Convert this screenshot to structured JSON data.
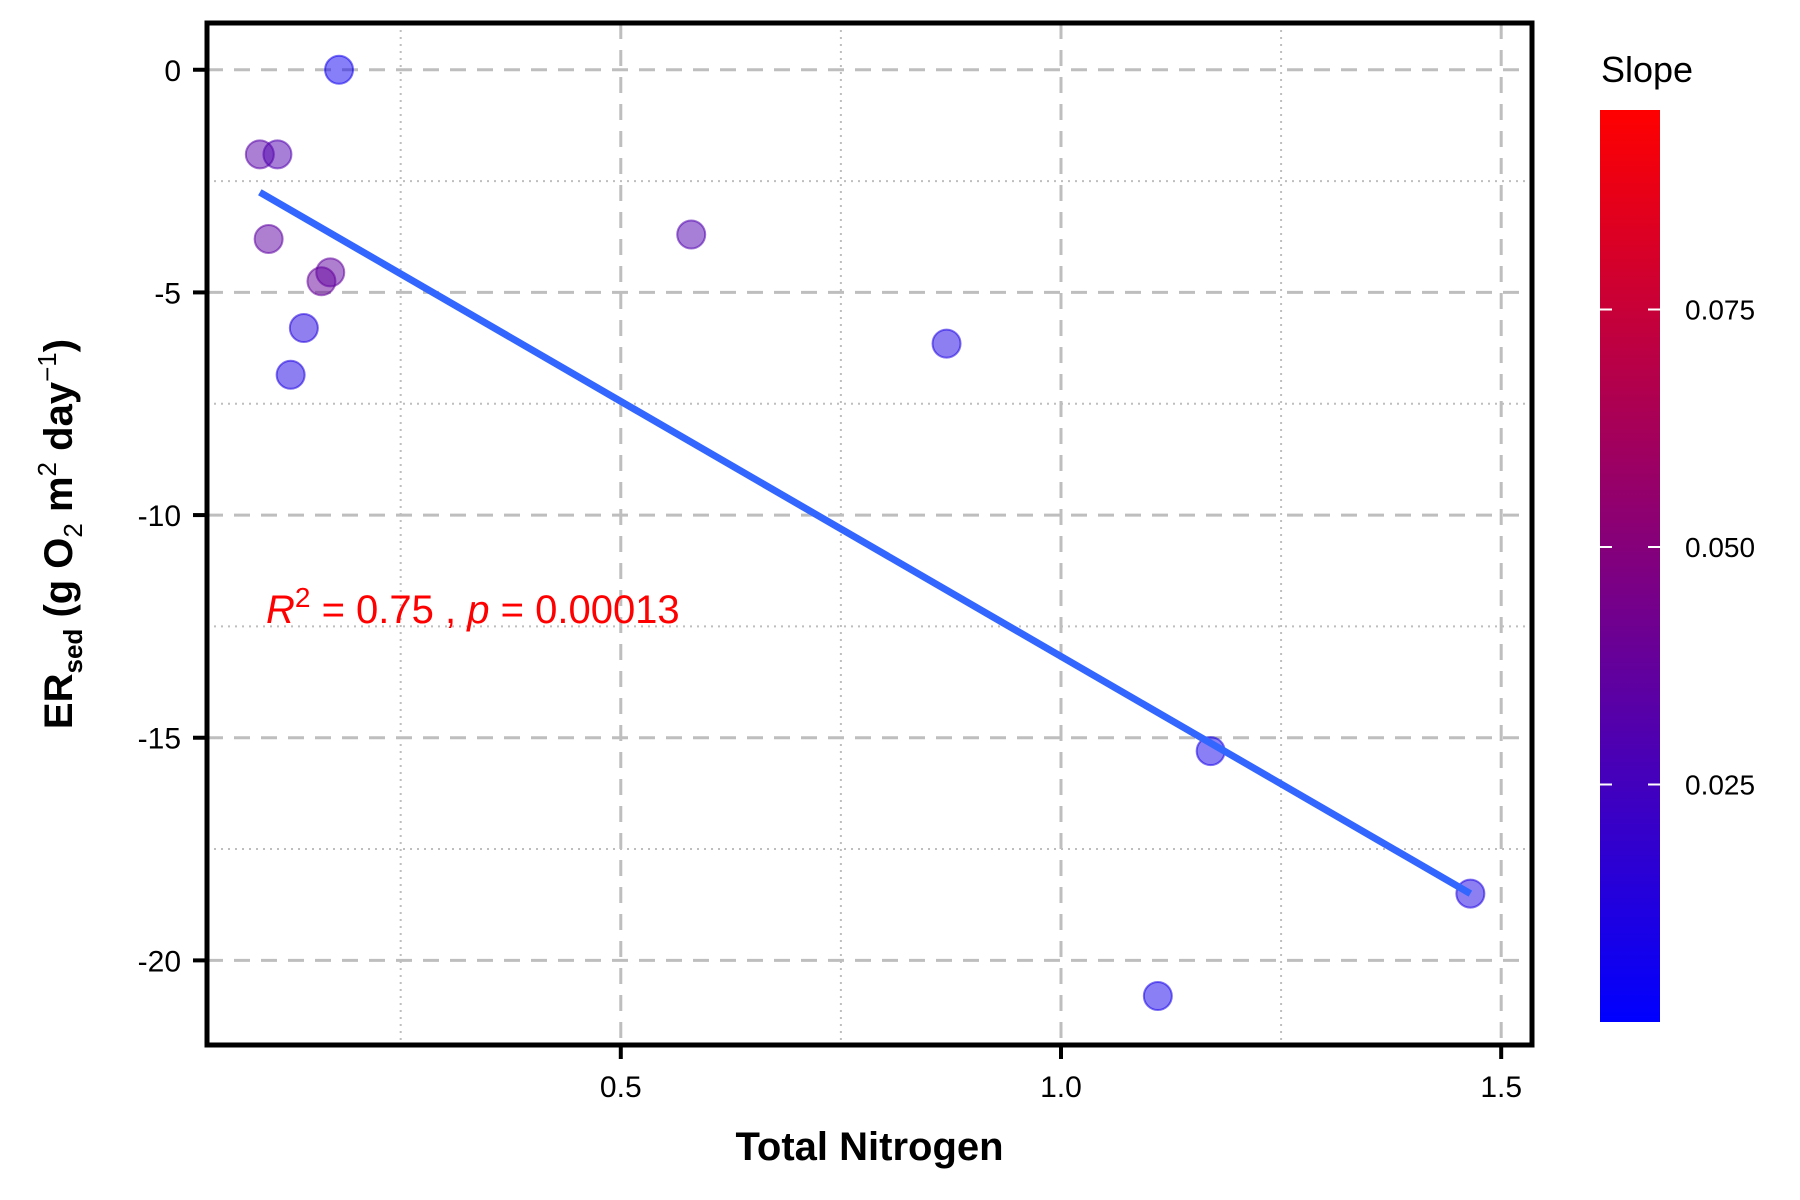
{
  "chart_data": {
    "type": "scatter",
    "xlabel": "Total Nitrogen",
    "ylabel": {
      "main": "ER",
      "sub": "sed",
      "unit_open": " (g O",
      "o2_sub": "2",
      "unit_mid": " m",
      "m_sup": "2",
      "unit_day": " day",
      "day_sup": "−1",
      "unit_close": ")"
    },
    "xlim": [
      0.03,
      1.535
    ],
    "ylim": [
      -21.9,
      1.05
    ],
    "x_ticks": [
      0.5,
      1.0,
      1.5
    ],
    "x_tick_labels": [
      "0.5",
      "1.0",
      "1.5"
    ],
    "x_minor_ticks": [
      0.25,
      0.75,
      1.25
    ],
    "y_ticks": [
      0,
      -5,
      -10,
      -15,
      -20
    ],
    "y_tick_labels": [
      "0",
      "-5",
      "-10",
      "-15",
      "-20"
    ],
    "y_minor_ticks": [
      -2.5,
      -7.5,
      -12.5,
      -17.5
    ],
    "grid": true,
    "points": [
      {
        "x": 0.09,
        "y": -1.9,
        "slope": 0.033
      },
      {
        "x": 0.11,
        "y": -1.9,
        "slope": 0.03
      },
      {
        "x": 0.1,
        "y": -3.8,
        "slope": 0.035
      },
      {
        "x": 0.16,
        "y": -4.75,
        "slope": 0.038
      },
      {
        "x": 0.17,
        "y": -4.55,
        "slope": 0.036
      },
      {
        "x": 0.14,
        "y": -5.8,
        "slope": 0.012
      },
      {
        "x": 0.125,
        "y": -6.85,
        "slope": 0.01
      },
      {
        "x": 0.18,
        "y": 0.0,
        "slope": 0.006
      },
      {
        "x": 0.58,
        "y": -3.7,
        "slope": 0.03
      },
      {
        "x": 0.87,
        "y": -6.15,
        "slope": 0.01
      },
      {
        "x": 1.11,
        "y": -20.8,
        "slope": 0.008
      },
      {
        "x": 1.17,
        "y": -15.3,
        "slope": 0.008
      },
      {
        "x": 1.465,
        "y": -18.5,
        "slope": 0.01
      }
    ],
    "fit_line": {
      "x": [
        0.09,
        1.465
      ],
      "y": [
        -2.75,
        -18.5
      ],
      "color": "#3366ff"
    },
    "annotation": {
      "r": "R",
      "r_sup": "2",
      "eq1": " = 0.75 , ",
      "p": "p",
      "eq2": " = 0.00013",
      "color": "#ff0000"
    },
    "colorbar": {
      "title": "Slope",
      "min": 0.0,
      "max": 0.096,
      "low_color": "#0000ff",
      "high_color": "#ff0000",
      "ticks": [
        0.025,
        0.05,
        0.075
      ],
      "tick_labels": [
        "0.025",
        "0.050",
        "0.075"
      ]
    },
    "point_opacity": 0.5,
    "grid_color": "#bebebe"
  }
}
